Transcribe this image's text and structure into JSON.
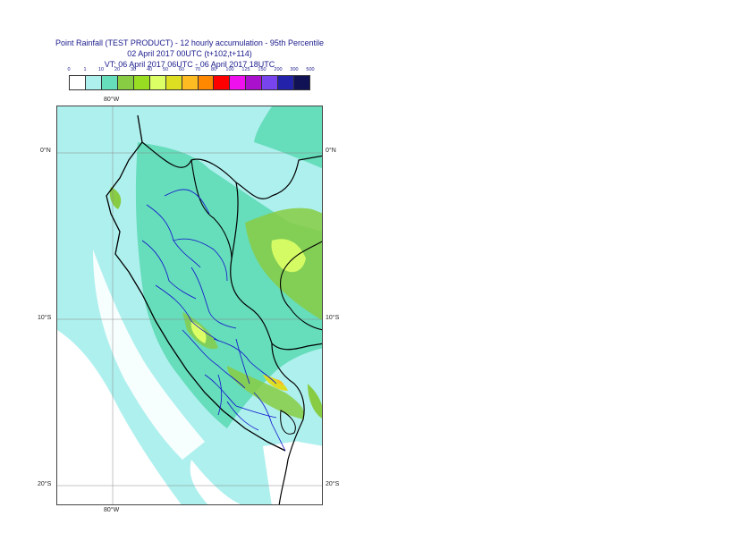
{
  "title": {
    "line1": "Point Rainfall (TEST PRODUCT) - 12 hourly accumulation - 95th Percentile",
    "line2": "02 April 2017 00UTC (t+102,t+114)",
    "line3": "VT: 06 April 2017 06UTC - 06 April 2017 18UTC"
  },
  "legend": {
    "ticks": [
      "0",
      "1",
      "10",
      "20",
      "30",
      "40",
      "50",
      "60",
      "70",
      "80",
      "100",
      "125",
      "150",
      "200",
      "300",
      "500"
    ],
    "colors": [
      "#ffffff",
      "#aef0ee",
      "#66ddbb",
      "#88cc44",
      "#99dd22",
      "#ddff66",
      "#dddd22",
      "#ffbb22",
      "#ff8800",
      "#ff0000",
      "#ee11ee",
      "#aa11cc",
      "#7744ee",
      "#2222aa",
      "#111155"
    ]
  },
  "axes": {
    "top_lon": "80°W",
    "bottom_lon": "80°W",
    "lat_0_left": "0°N",
    "lat_0_right": "0°N",
    "lat_10_left": "10°S",
    "lat_10_right": "10°S",
    "lat_20_left": "20°S",
    "lat_20_right": "20°S"
  },
  "colors": {
    "ocean_base": "#aef0ee",
    "land_low": "#66ddbb",
    "land_mid": "#88cc44",
    "land_high": "#ddff66",
    "dry": "#ffffff",
    "border": "#000000",
    "admin": "#1010cc",
    "grid": "#888888"
  }
}
